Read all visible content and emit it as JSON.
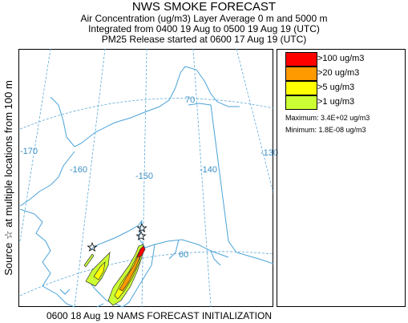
{
  "header": {
    "title": "NWS SMOKE FORECAST",
    "line1": "Air Concentration (ug/m3) Layer Average    0 m and  5000 m",
    "line2": "Integrated from 0400 19 Aug to 0500 19 Aug 19 (UTC)",
    "line3": "PM25 Release started at 0600 17 Aug 19 (UTC)"
  },
  "side_label": "Source ☆ at multiple locations    from  100 m",
  "map": {
    "grid_labels": {
      "lon_170": "-170",
      "lon_160": "-160",
      "lon_150": "-150",
      "lon_140": "-140",
      "lon_130": "-130",
      "lat_70": "70",
      "lat_60": "60"
    },
    "colors": {
      "coast": "#4aa3d8",
      "grid": "#5aa9d6",
      "level_100": "#ff0000",
      "level_20": "#ff9900",
      "level_5": "#ffff00",
      "level_1": "#ccff33"
    }
  },
  "legend": {
    "items": [
      {
        "label": ">100 ug/m3",
        "color": "#ff0000"
      },
      {
        "label": ">20 ug/m3",
        "color": "#ff9900"
      },
      {
        "label": ">5 ug/m3",
        "color": "#ffff00"
      },
      {
        "label": ">1 ug/m3",
        "color": "#ccff33"
      }
    ],
    "maximum": "Maximum: 3.4E+02 ug/m3",
    "minimum": "Minimum: 1.8E-08 ug/m3"
  },
  "footer": "0600 18 Aug 19 NAMS FORECAST INITIALIZATION"
}
